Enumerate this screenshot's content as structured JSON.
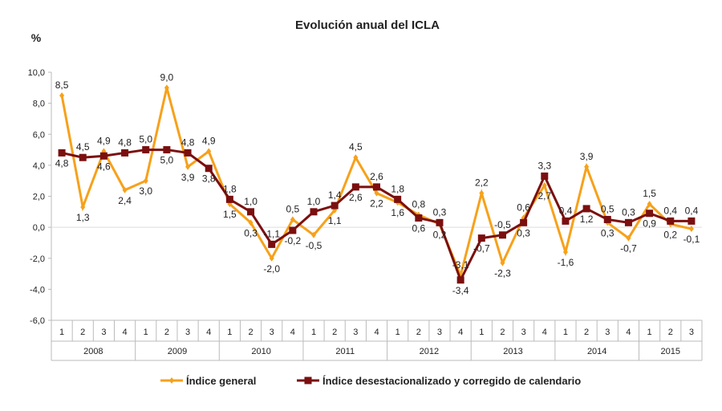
{
  "chart_data": {
    "type": "line",
    "title": "Evolución anual del ICLA",
    "ylabel": "%",
    "xlabel": "",
    "ylim": [
      -6,
      10
    ],
    "yticks": [
      "-6,0",
      "-4,0",
      "-2,0",
      "0,0",
      "2,0",
      "4,0",
      "6,0",
      "8,0",
      "10,0"
    ],
    "ytick_values": [
      -6,
      -4,
      -2,
      0,
      2,
      4,
      6,
      8,
      10
    ],
    "grid": false,
    "legend_position": "bottom",
    "years": [
      "2008",
      "2009",
      "2010",
      "2011",
      "2012",
      "2013",
      "2014",
      "2015"
    ],
    "categories": [
      "1",
      "2",
      "3",
      "4",
      "1",
      "2",
      "3",
      "4",
      "1",
      "2",
      "3",
      "4",
      "1",
      "2",
      "3",
      "4",
      "1",
      "2",
      "3",
      "4",
      "1",
      "2",
      "3",
      "4",
      "1",
      "2",
      "3",
      "4",
      "1",
      "2",
      "3"
    ],
    "series": [
      {
        "name": "Índice general",
        "color": "#F7A11A",
        "marker": "diamond",
        "values": [
          8.5,
          1.3,
          4.9,
          2.4,
          3.0,
          9.0,
          3.9,
          4.9,
          1.5,
          0.3,
          -2.0,
          0.5,
          -0.5,
          1.1,
          4.5,
          2.2,
          1.6,
          0.8,
          0.2,
          -3.1,
          2.2,
          -2.3,
          0.6,
          2.7,
          -1.6,
          3.9,
          0.3,
          -0.7,
          1.5,
          0.2,
          -0.1
        ]
      },
      {
        "name": "Índice desestacionalizado  y corregido de calendario",
        "color": "#7B0F0F",
        "marker": "square",
        "values": [
          4.8,
          4.5,
          4.6,
          4.8,
          5.0,
          5.0,
          4.8,
          3.8,
          1.8,
          1.0,
          -1.1,
          -0.2,
          1.0,
          1.4,
          2.6,
          2.6,
          1.8,
          0.6,
          0.3,
          -3.4,
          -0.7,
          -0.5,
          0.3,
          3.3,
          0.4,
          1.2,
          0.5,
          0.3,
          0.9,
          0.4,
          0.4
        ]
      }
    ]
  }
}
